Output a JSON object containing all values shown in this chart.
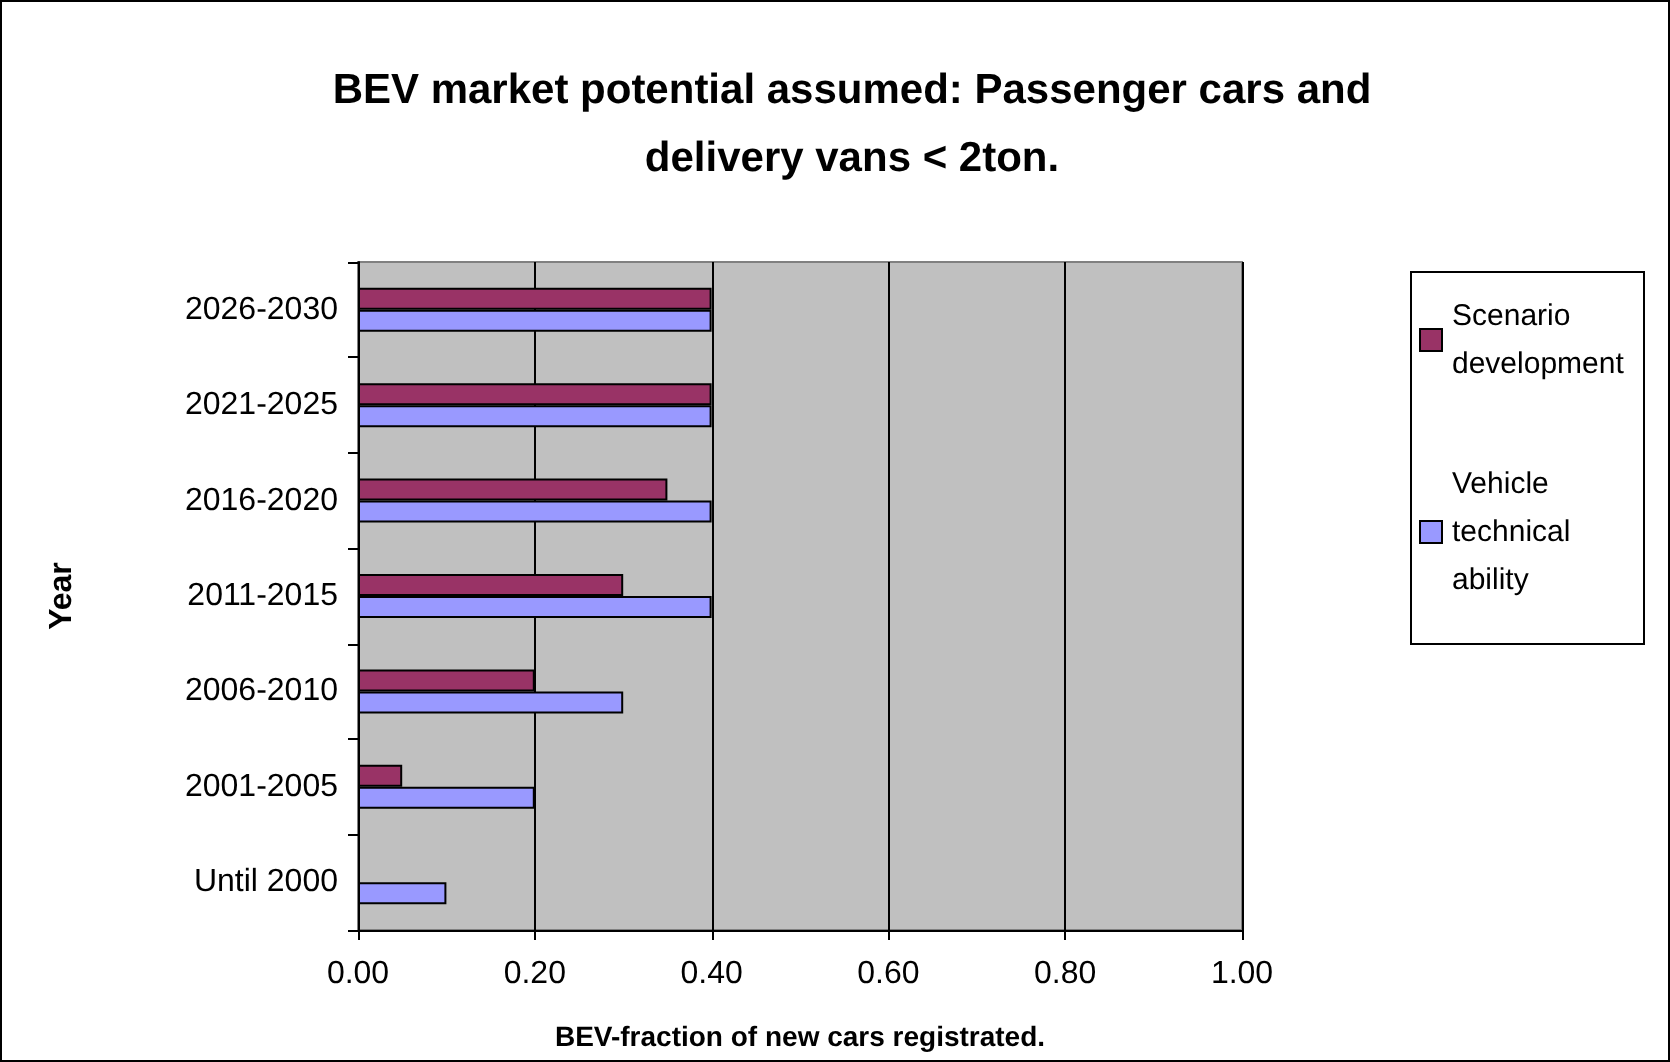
{
  "chart_data": {
    "type": "bar",
    "orientation": "horizontal",
    "title": "BEV market potential assumed: Passenger cars and\ndelivery vans < 2ton.",
    "xlabel": "BEV-fraction of new cars registrated.",
    "ylabel": "Year",
    "categories": [
      "2026-2030",
      "2021-2025",
      "2016-2020",
      "2011-2015",
      "2006-2010",
      "2001-2005",
      "Until 2000"
    ],
    "series": [
      {
        "name": "Scenario development",
        "color": "#993366",
        "values": [
          0.4,
          0.4,
          0.35,
          0.3,
          0.2,
          0.05,
          null
        ]
      },
      {
        "name": "Vehicle technical ability",
        "color": "#9999ff",
        "values": [
          0.4,
          0.4,
          0.4,
          0.4,
          0.3,
          0.2,
          0.1
        ]
      }
    ],
    "xlim": [
      0,
      1
    ],
    "xticks": [
      {
        "value": 0,
        "label": "0.00"
      },
      {
        "value": 0.2,
        "label": "0.20"
      },
      {
        "value": 0.4,
        "label": "0.40"
      },
      {
        "value": 0.6,
        "label": "0.60"
      },
      {
        "value": 0.8,
        "label": "0.80"
      },
      {
        "value": 1,
        "label": "1.00"
      }
    ],
    "grid": "x",
    "legend": "right"
  }
}
